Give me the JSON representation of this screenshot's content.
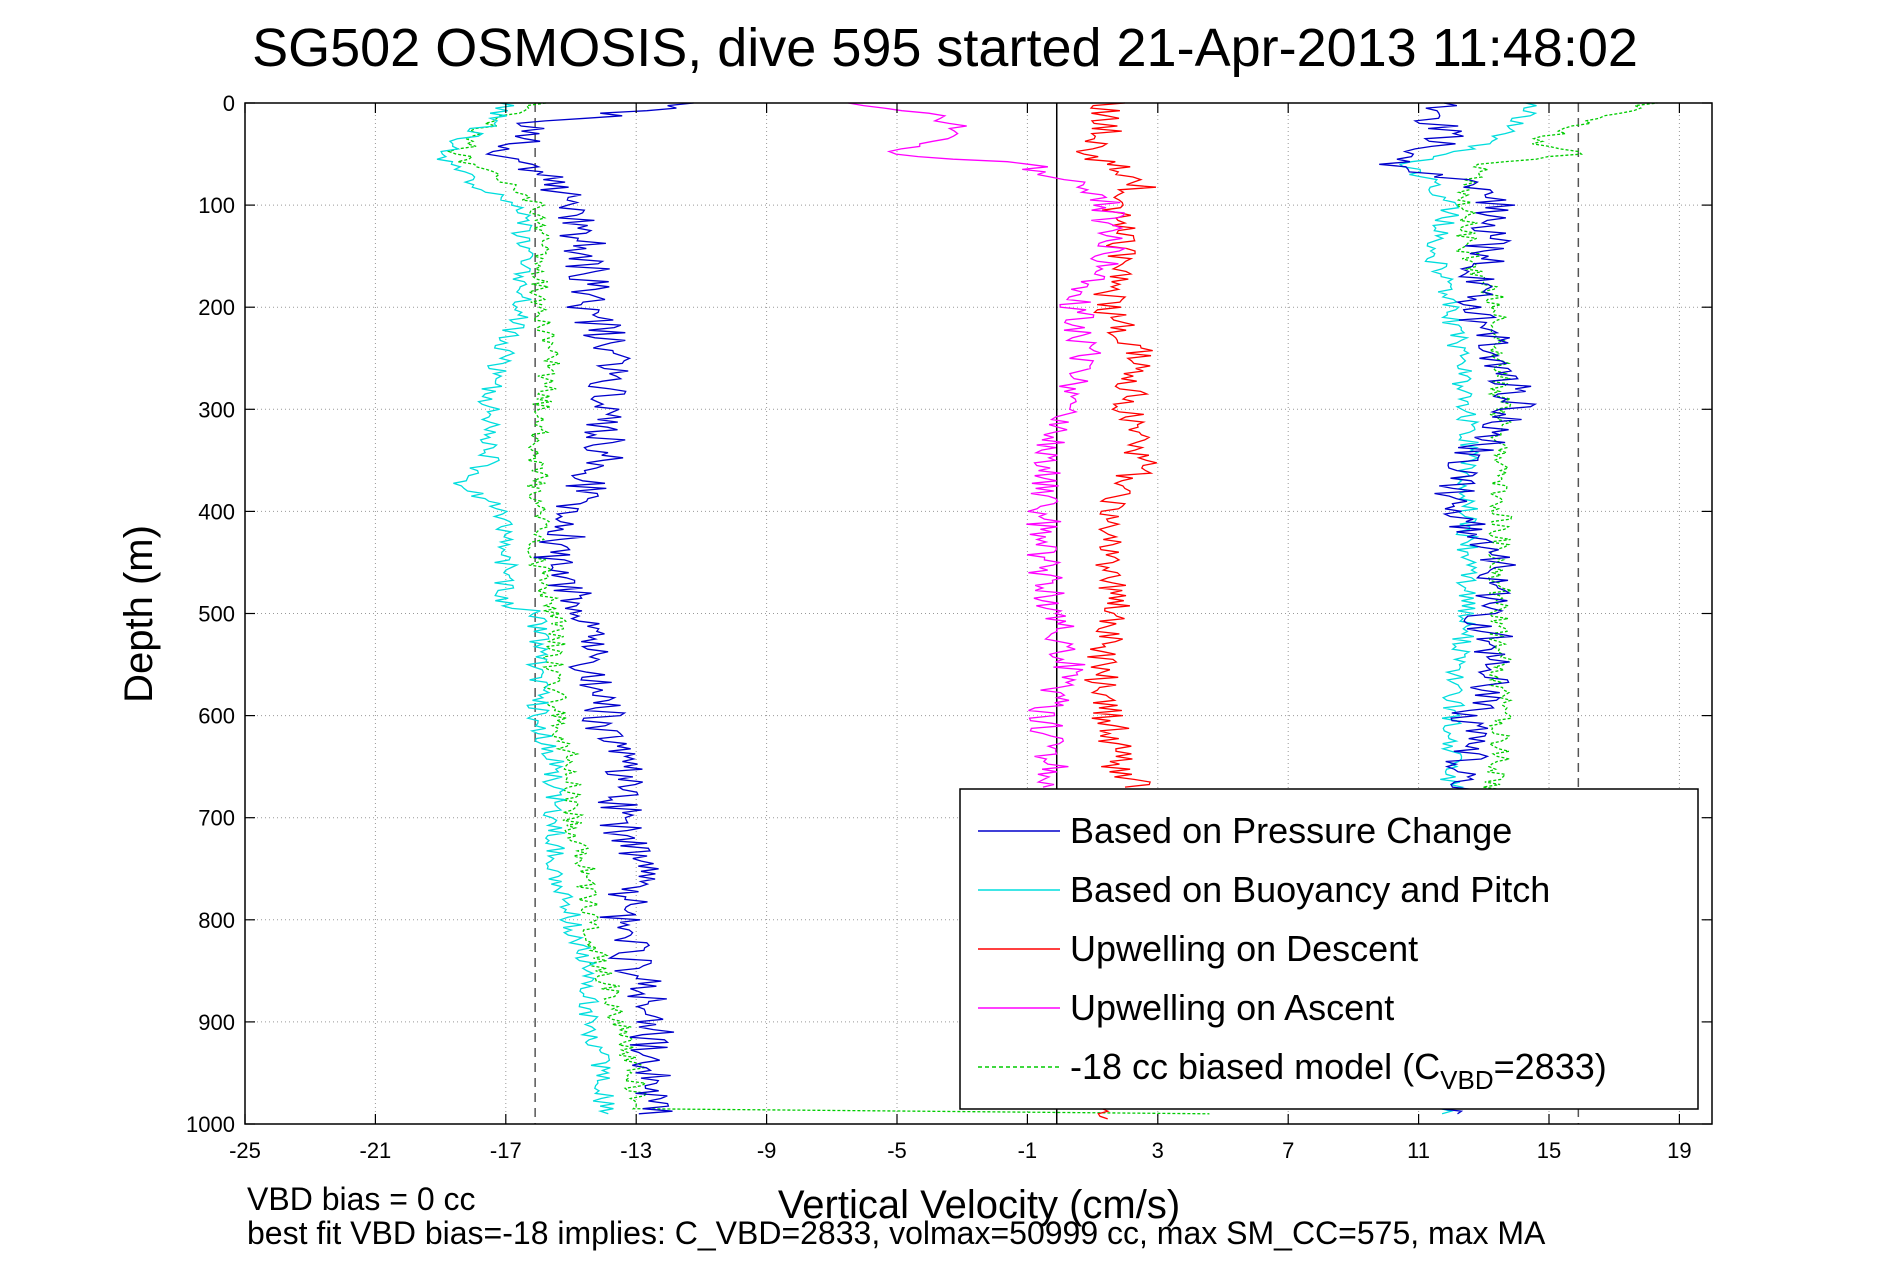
{
  "chart_data": {
    "type": "line",
    "title": "SG502 OSMOSIS, dive 595 started 21-Apr-2013 11:48:02",
    "xlabel": "Vertical Velocity (cm/s)",
    "ylabel": "Depth (m)",
    "xlim": [
      -25,
      20
    ],
    "ylim": [
      0,
      1000
    ],
    "y_reversed": true,
    "x_ticks": [
      -25,
      -21,
      -17,
      -13,
      -9,
      -5,
      -1,
      3,
      7,
      11,
      15,
      19
    ],
    "y_ticks": [
      0,
      100,
      200,
      300,
      400,
      500,
      600,
      700,
      800,
      900,
      1000
    ],
    "grid": true,
    "legend_position": "lower-right",
    "reference_lines": [
      {
        "x": -0.1,
        "style": "solid",
        "color": "#000000"
      },
      {
        "x": -16.1,
        "style": "dashed",
        "color": "#555555"
      },
      {
        "x": 15.9,
        "style": "dashed",
        "color": "#555555"
      }
    ],
    "series": [
      {
        "name": "Based on Pressure Change",
        "color": "#0000cc",
        "noise": 0.7,
        "descent": {
          "depth": [
            0,
            20,
            50,
            80,
            100,
            150,
            200,
            250,
            300,
            350,
            400,
            450,
            500,
            550,
            600,
            650,
            700,
            750,
            800,
            850,
            900,
            950,
            990
          ],
          "value": [
            -11,
            -16,
            -17,
            -15.5,
            -15,
            -14.5,
            -14.5,
            -13.5,
            -14,
            -14,
            -15,
            -15.5,
            -14.5,
            -14.5,
            -14,
            -13.5,
            -13.5,
            -13,
            -13.5,
            -13,
            -12.5,
            -12.5,
            -12.5
          ]
        },
        "ascent": {
          "depth": [
            990,
            950,
            900,
            850,
            800,
            750,
            700,
            650,
            600,
            550,
            500,
            450,
            400,
            350,
            300,
            250,
            200,
            150,
            100,
            80,
            60,
            40,
            20,
            0
          ],
          "value": [
            12,
            12.5,
            12.5,
            12.5,
            12.5,
            12.5,
            12.5,
            12.5,
            12.5,
            13.5,
            13,
            13.5,
            12,
            12.5,
            14,
            13.5,
            12.5,
            13,
            13.5,
            12.5,
            10,
            12,
            11.5,
            11.5
          ]
        }
      },
      {
        "name": "Based on Buoyancy and Pitch",
        "color": "#00dddd",
        "noise": 0.35,
        "descent": {
          "depth": [
            0,
            20,
            50,
            80,
            100,
            150,
            200,
            280,
            300,
            350,
            370,
            400,
            450,
            490,
            500,
            550,
            600,
            650,
            700,
            750,
            800,
            850,
            900,
            950,
            990
          ],
          "value": [
            -17,
            -17.5,
            -19,
            -18,
            -16.5,
            -16.5,
            -16.5,
            -17.5,
            -17.5,
            -17.5,
            -18.5,
            -17,
            -17,
            -17,
            -16,
            -16,
            -16,
            -15.5,
            -15.5,
            -15.5,
            -15,
            -14.5,
            -14.5,
            -14,
            -14
          ]
        },
        "ascent": {
          "depth": [
            990,
            900,
            800,
            700,
            650,
            600,
            500,
            400,
            300,
            200,
            150,
            100,
            80,
            60,
            40,
            20,
            0
          ],
          "value": [
            12,
            12,
            12,
            12,
            12,
            12,
            12.5,
            12.5,
            12.5,
            12,
            11.5,
            12,
            11.5,
            10.5,
            13,
            14,
            14.5
          ]
        }
      },
      {
        "name": "Upwelling on Descent",
        "color": "#ff0000",
        "noise": 0.55,
        "descent": {
          "depth": [
            0,
            20,
            50,
            80,
            100,
            150,
            200,
            250,
            300,
            350,
            400,
            450,
            500,
            550,
            600,
            650,
            670
          ],
          "value": [
            1.5,
            1.5,
            1,
            2.5,
            1.8,
            1.8,
            1.5,
            2.5,
            2,
            2.5,
            1.5,
            1.5,
            1.8,
            1.2,
            1.5,
            1.8,
            2.5
          ]
        },
        "ascent": {
          "depth": [
            985,
            995
          ],
          "value": [
            1,
            2
          ]
        }
      },
      {
        "name": "Upwelling on Ascent",
        "color": "#ff00ff",
        "noise": 0.55,
        "descent": {
          "depth": [
            670,
            650,
            600,
            550,
            500,
            450,
            400,
            350,
            300,
            250,
            200,
            150,
            100,
            80,
            60,
            50,
            30,
            10,
            0
          ],
          "value": [
            -0.5,
            -0.2,
            -0.5,
            0.3,
            -0.2,
            -0.5,
            -0.5,
            -0.5,
            0,
            0.8,
            0.5,
            1.5,
            1.5,
            0.5,
            -1,
            -5,
            -3,
            -4,
            -6
          ]
        },
        "ascent": {
          "depth": [],
          "value": []
        }
      },
      {
        "name": "-18 cc biased model (C_VBD=2833)",
        "color": "#00cc00",
        "noise": 0.35,
        "dashed": true,
        "descent": {
          "depth": [
            0,
            20,
            50,
            80,
            100,
            150,
            200,
            250,
            300,
            350,
            400,
            450,
            500,
            550,
            600,
            650,
            700,
            750,
            800,
            850,
            900,
            950,
            985,
            992
          ],
          "value": [
            -16,
            -17.5,
            -18.5,
            -17,
            -16,
            -16,
            -16,
            -15.5,
            -16,
            -16,
            -16,
            -16,
            -15.5,
            -15.5,
            -15.5,
            -15,
            -15,
            -14.5,
            -14.5,
            -14,
            -13.5,
            -13,
            -13,
            12
          ]
        },
        "ascent": {
          "depth": [
            985,
            900,
            800,
            700,
            650,
            600,
            500,
            400,
            300,
            200,
            150,
            100,
            80,
            60,
            50,
            40,
            20,
            0
          ],
          "value": [
            12,
            13,
            13,
            13,
            13.5,
            13.5,
            13.5,
            13.5,
            13.5,
            13.5,
            12.5,
            12.5,
            12.5,
            13,
            16,
            14.5,
            16,
            18
          ]
        }
      }
    ],
    "legend": [
      {
        "label": "Based on Pressure Change",
        "color": "#0000cc",
        "dashed": false
      },
      {
        "label": "Based on Buoyancy and Pitch",
        "color": "#00dddd",
        "dashed": false
      },
      {
        "label": "Upwelling on Descent",
        "color": "#ff0000",
        "dashed": false
      },
      {
        "label": "Upwelling on Ascent",
        "color": "#ff00ff",
        "dashed": false
      },
      {
        "label_prefix": "-18 cc biased model (C",
        "label_sub": "VBD",
        "label_suffix": "=2833)",
        "color": "#00cc00",
        "dashed": true
      }
    ],
    "footer_lines": [
      "VBD bias = 0 cc",
      "best fit VBD bias=-18 implies: C_VBD=2833, volmax=50999 cc, max SM_CC=575, max MA"
    ]
  }
}
